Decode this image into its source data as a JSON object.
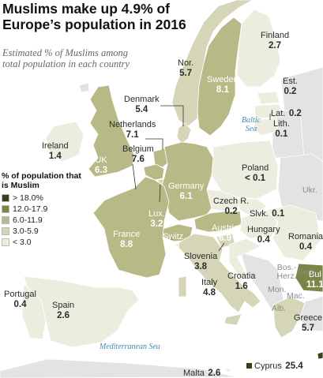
{
  "title": "Muslims make up 4.9% of Europe’s population in 2016",
  "subtitle": "Estimated % of Muslims among total population in each country",
  "colors": {
    "sea": "#ffffff",
    "outside": "#e3e3e3",
    "level_5": "#35431c",
    "level_4": "#7d8447",
    "level_3": "#b7b986",
    "level_2": "#d5d6b7",
    "level_1": "#eceddf",
    "border": "#ffffff",
    "sea_text": "#3f8ab5"
  },
  "legend": {
    "title": "% of population that is Muslim",
    "items": [
      {
        "label": "> 18.0%",
        "color": "#35431c"
      },
      {
        "label": "12.0-17.9",
        "color": "#7d8447"
      },
      {
        "label": "6.0-11.9",
        "color": "#b7b986"
      },
      {
        "label": "3.0-5.9",
        "color": "#d5d6b7"
      },
      {
        "label": "< 3.0",
        "color": "#eceddf"
      }
    ]
  },
  "countries": {
    "finland": {
      "name": "Finland",
      "value": "2.7"
    },
    "norway": {
      "name": "Nor.",
      "value": "5.7"
    },
    "sweden": {
      "name": "Sweden",
      "value": "8.1"
    },
    "estonia": {
      "name": "Est.",
      "value": "0.2"
    },
    "latvia": {
      "name": "Lat.",
      "value": "0.2"
    },
    "lithuania": {
      "name": "Lith.",
      "value": "0.1"
    },
    "denmark": {
      "name": "Denmark",
      "value": "5.4"
    },
    "netherlands": {
      "name": "Netherlands",
      "value": "7.1"
    },
    "belgium": {
      "name": "Belgium",
      "value": "7.6"
    },
    "ireland": {
      "name": "Ireland",
      "value": "1.4"
    },
    "uk": {
      "name": "UK",
      "value": "6.3"
    },
    "poland": {
      "name": "Poland",
      "value": "< 0.1"
    },
    "germany": {
      "name": "Germany",
      "value": "6.1"
    },
    "czech": {
      "name": "Czech R.",
      "value": "0.2"
    },
    "slovakia": {
      "name": "Slvk.",
      "value": "0.1"
    },
    "luxembourg": {
      "name": "Lux.",
      "value": "3.2"
    },
    "austria": {
      "name": "Austria",
      "value": "6.9"
    },
    "hungary": {
      "name": "Hungary",
      "value": "0.4"
    },
    "romania": {
      "name": "Romania",
      "value": "0.4"
    },
    "france": {
      "name": "France",
      "value": "8.8"
    },
    "switzerland": {
      "name": "Switz.",
      "value": "6.1"
    },
    "slovenia": {
      "name": "Slovenia",
      "value": "3.8"
    },
    "croatia": {
      "name": "Croatia",
      "value": "1.6"
    },
    "italy": {
      "name": "Italy",
      "value": "4.8"
    },
    "bulgaria": {
      "name": "Bul",
      "value": "11.1"
    },
    "portugal": {
      "name": "Portugal",
      "value": "0.4"
    },
    "spain": {
      "name": "Spain",
      "value": "2.6"
    },
    "greece": {
      "name": "Greece",
      "value": "5.7"
    },
    "cyprus": {
      "name": "Cyprus",
      "value": "25.4"
    },
    "malta": {
      "name": "Malta",
      "value": "2.6"
    }
  },
  "non_data_labels": {
    "ukr": "Ukr.",
    "serb": "Serb.",
    "bos_herz": "Bos.-Herz.",
    "mon": "Mon.",
    "mac": "Mac.",
    "alb": "Alb."
  },
  "seas": {
    "baltic": "Baltic Sea",
    "mediterranean": "Mediterranean Sea"
  }
}
